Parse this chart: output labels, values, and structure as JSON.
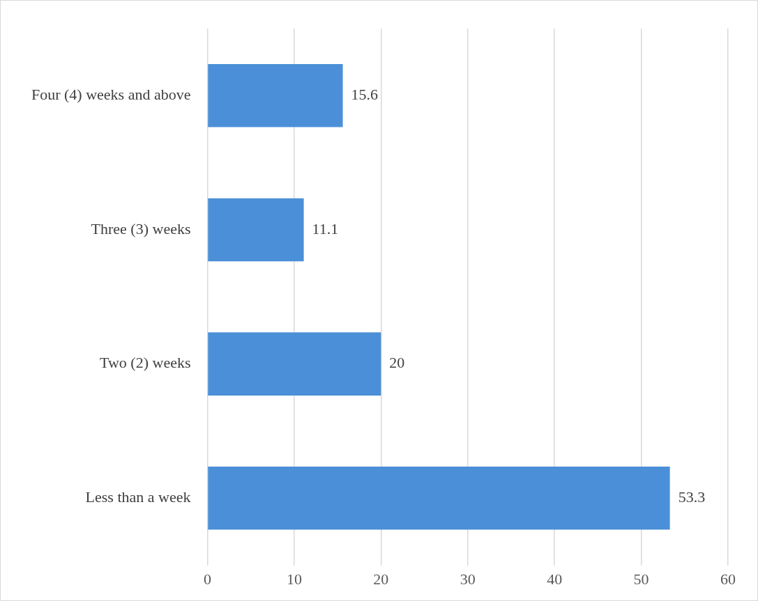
{
  "chart_data": {
    "type": "bar",
    "orientation": "horizontal",
    "categories": [
      "Four (4) weeks and above",
      "Three (3) weeks",
      "Two (2) weeks",
      "Less than a week"
    ],
    "values": [
      15.6,
      11.1,
      20,
      53.3
    ],
    "color": "#4a8fd8",
    "xlim": [
      0,
      60
    ],
    "xticks": [
      0,
      10,
      20,
      30,
      40,
      50,
      60
    ],
    "grid": "x",
    "data_labels": true,
    "legend": false
  }
}
